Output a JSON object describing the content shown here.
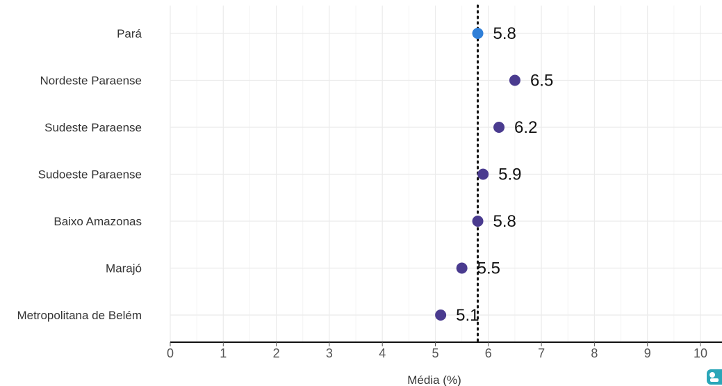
{
  "chart_data": {
    "type": "scatter",
    "categories": [
      "Pará",
      "Nordeste Paraense",
      "Sudeste Paraense",
      "Sudoeste Paraense",
      "Baixo Amazonas",
      "Marajó",
      "Metropolitana de Belém"
    ],
    "values": [
      5.8,
      6.5,
      6.2,
      5.9,
      5.8,
      5.5,
      5.1
    ],
    "value_labels": [
      "5.8",
      "6.5",
      "6.2",
      "5.9",
      "5.8",
      "5.5",
      "5.1"
    ],
    "highlight_category": "Pará",
    "colors": {
      "highlight": "#2f7fd8",
      "default": "#4a3b8f",
      "reference_line": "#111111",
      "grid": "#ebebeb",
      "axis": "#111111"
    },
    "reference_line": 5.8,
    "xlim": [
      0,
      10
    ],
    "xticks": [
      0,
      1,
      2,
      3,
      4,
      5,
      6,
      7,
      8,
      9,
      10
    ],
    "xlabel": "Média (%)",
    "ylabel": "",
    "title": "",
    "grid": true,
    "legend": "none"
  }
}
